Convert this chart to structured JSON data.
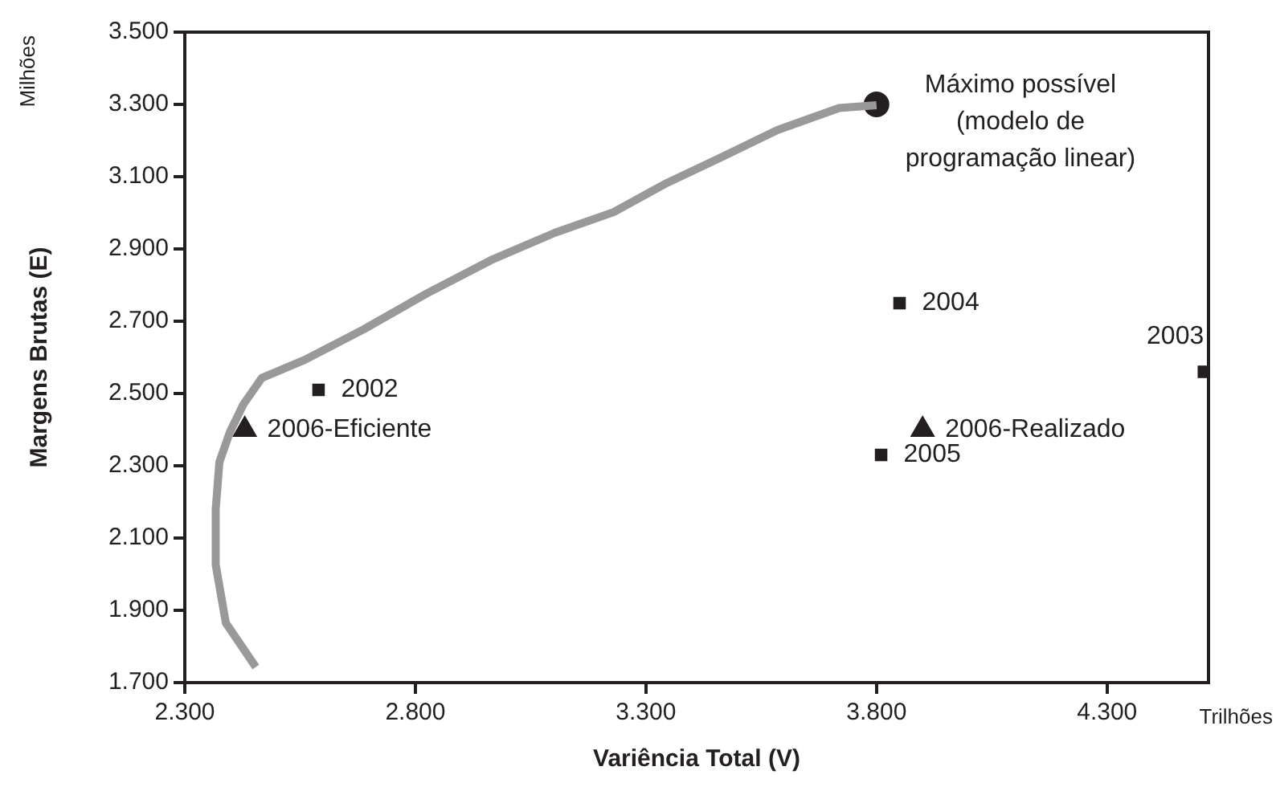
{
  "chart_data": {
    "type": "scatter",
    "xlabel": "Variência Total (V)",
    "ylabel": "Margens Brutas (E)",
    "xlim": [
      2300,
      4520
    ],
    "ylim": [
      1700,
      3500
    ],
    "xticks": [
      {
        "value": 2300,
        "label": "2.300"
      },
      {
        "value": 2800,
        "label": "2.800"
      },
      {
        "value": 3300,
        "label": "3.300"
      },
      {
        "value": 3800,
        "label": "3.800"
      },
      {
        "value": 4300,
        "label": "4.300"
      }
    ],
    "yticks": [
      {
        "value": 1700,
        "label": "1.700"
      },
      {
        "value": 1900,
        "label": "1.900"
      },
      {
        "value": 2100,
        "label": "2.100"
      },
      {
        "value": 2300,
        "label": "2.300"
      },
      {
        "value": 2500,
        "label": "2.500"
      },
      {
        "value": 2700,
        "label": "2.700"
      },
      {
        "value": 2900,
        "label": "2.900"
      },
      {
        "value": 3100,
        "label": "3.100"
      },
      {
        "value": 3300,
        "label": "3.300"
      },
      {
        "value": 3500,
        "label": "3.500"
      }
    ],
    "grid": false,
    "legend": false,
    "series": [
      {
        "type": "line",
        "color": "#999999",
        "marker": "none",
        "x": [
          2454,
          2389,
          2367,
          2367,
          2375,
          2398,
          2427,
          2467,
          2560,
          2687,
          2825,
          2964,
          3103,
          3230,
          3346,
          3461,
          3585,
          3719,
          3800
        ],
        "values": [
          1743,
          1865,
          2026,
          2179,
          2310,
          2394,
          2470,
          2543,
          2593,
          2677,
          2777,
          2869,
          2945,
          3002,
          3083,
          3152,
          3229,
          3290,
          3298
        ]
      },
      {
        "color": "#231f20",
        "marker": "circle",
        "x": [
          3800
        ],
        "values": [
          3300
        ]
      },
      {
        "color": "#231f20",
        "marker": "square",
        "x": [
          2590,
          4510,
          3850,
          3810
        ],
        "values": [
          2510,
          2560,
          2750,
          2330
        ]
      },
      {
        "color": "#231f20",
        "marker": "triangle",
        "x": [
          2430,
          3900
        ],
        "values": [
          2400,
          2400
        ]
      }
    ],
    "annotations": [
      "Milhões",
      "Trilhões",
      {
        "text": "Máximo possível\n(modelo de\nprogramação linear)",
        "x": 3800,
        "y": 3300
      },
      {
        "text": "2002",
        "x": 2590,
        "y": 2510
      },
      {
        "text": "2003",
        "x": 4510,
        "y": 2560
      },
      {
        "text": "2004",
        "x": 3850,
        "y": 2750
      },
      {
        "text": "2005",
        "x": 3810,
        "y": 2330
      },
      {
        "text": "2006-Eficiente",
        "x": 2430,
        "y": 2400
      },
      {
        "text": "2006-Realizado",
        "x": 3900,
        "y": 2400
      }
    ]
  }
}
